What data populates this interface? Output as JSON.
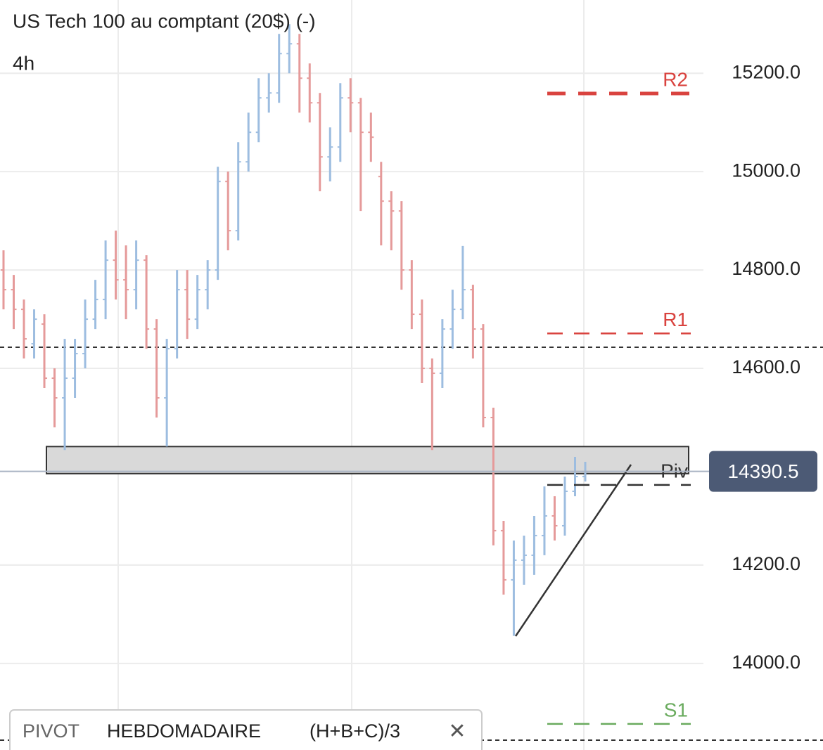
{
  "chart_data": {
    "type": "ohlc",
    "title": "US Tech 100 au comptant (20$) (-)",
    "timeframe": "4h",
    "open": [
      14800,
      14760,
      14720,
      14650,
      14690,
      14580,
      14540,
      14580,
      14630,
      14700,
      14740,
      14820,
      14780,
      14760,
      14820,
      14680,
      14540,
      14640,
      14760,
      14700,
      14760,
      14800,
      14980,
      14880,
      15020,
      15080,
      15150,
      15160,
      15240,
      15260,
      15190,
      15140,
      15030,
      15050,
      15150,
      15140,
      15080,
      14990,
      14940,
      14920,
      14800,
      14710,
      14600,
      14590,
      14680,
      14720,
      14760,
      14680,
      14500,
      14270,
      14170,
      14210,
      14220,
      14260,
      14300,
      14280,
      14350,
      14380
    ],
    "close": [
      14760,
      14720,
      14660,
      14700,
      14580,
      14540,
      14580,
      14630,
      14700,
      14740,
      14820,
      14780,
      14760,
      14820,
      14680,
      14540,
      14640,
      14760,
      14700,
      14760,
      14800,
      14980,
      14880,
      15020,
      15080,
      15150,
      15160,
      15240,
      15260,
      15190,
      15140,
      15030,
      15050,
      15150,
      15140,
      15080,
      15070,
      14940,
      14920,
      14800,
      14710,
      14600,
      14590,
      14680,
      14720,
      14760,
      14680,
      14500,
      14270,
      14170,
      14210,
      14220,
      14260,
      14300,
      14280,
      14350,
      14380,
      14390
    ],
    "high": [
      14840,
      14790,
      14740,
      14720,
      14710,
      14600,
      14660,
      14660,
      14740,
      14780,
      14860,
      14880,
      14850,
      14860,
      14830,
      14700,
      14660,
      14800,
      14800,
      14790,
      14820,
      15010,
      15000,
      15060,
      15120,
      15190,
      15200,
      15280,
      15300,
      15280,
      15220,
      15160,
      15090,
      15180,
      15190,
      15150,
      15120,
      15020,
      14960,
      14940,
      14820,
      14740,
      14620,
      14700,
      14760,
      14849,
      14770,
      14690,
      14520,
      14290,
      14250,
      14260,
      14300,
      14360,
      14340,
      14380,
      14420,
      14410
    ],
    "low": [
      14720,
      14680,
      14620,
      14620,
      14560,
      14480,
      14434,
      14540,
      14600,
      14680,
      14700,
      14740,
      14700,
      14720,
      14640,
      14500,
      14441,
      14620,
      14660,
      14680,
      14720,
      14780,
      14840,
      14860,
      15000,
      15060,
      15120,
      15140,
      15200,
      15120,
      15100,
      14960,
      14980,
      15020,
      15080,
      14920,
      15020,
      14850,
      14840,
      14760,
      14680,
      14570,
      14434,
      14560,
      14640,
      14700,
      14620,
      14480,
      14240,
      14140,
      14056,
      14160,
      14180,
      14220,
      14250,
      14260,
      14340,
      14370
    ],
    "up_color": "#9dbde0",
    "down_color": "#e59a9a",
    "ylim": [
      13824,
      15349
    ],
    "yticks": [
      {
        "value": 14000,
        "label": "14000.0"
      },
      {
        "value": 14200,
        "label": "14200.0"
      },
      {
        "value": 14600,
        "label": "14600.0"
      },
      {
        "value": 14800,
        "label": "14800.0"
      },
      {
        "value": 15000,
        "label": "15000.0"
      },
      {
        "value": 15200,
        "label": "15200.0"
      }
    ],
    "grid": true,
    "last_price": 14390.5,
    "pivot_levels": [
      {
        "name": "R2",
        "value": 15159,
        "color": "#d9433f"
      },
      {
        "name": "R1",
        "value": 14671,
        "color": "#d9433f"
      },
      {
        "name": "Piv",
        "value": 14363,
        "color": "#333333"
      },
      {
        "name": "S1",
        "value": 13877,
        "color": "#6aab5e"
      }
    ],
    "price_lines": [
      14643,
      13844
    ],
    "zone": [
      14386,
      14441
    ],
    "legend": {
      "name": "PIVOT",
      "period": "HEBDOMADAIRE",
      "formula": "(H+B+C)/3",
      "close": "✕"
    }
  }
}
